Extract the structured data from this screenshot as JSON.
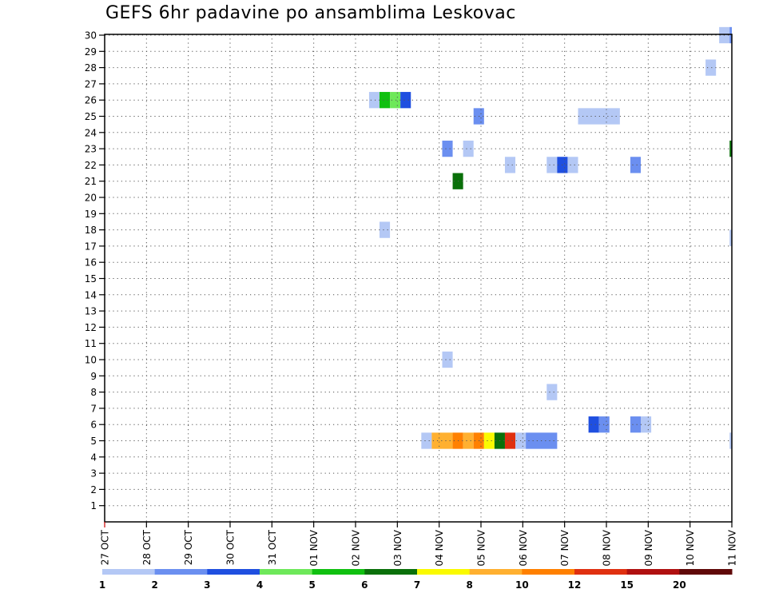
{
  "chart_data": {
    "type": "heatmap",
    "title": "GEFS 6hr padavine po ansamblima Leskovac",
    "xlabel": "",
    "ylabel": "",
    "x_ticks": [
      "27 OCT",
      "28 OCT",
      "29 OCT",
      "30 OCT",
      "31 OCT",
      "01 NOV",
      "02 NOV",
      "03 NOV",
      "04 NOV",
      "05 NOV",
      "06 NOV",
      "07 NOV",
      "08 NOV",
      "09 NOV",
      "10 NOV",
      "11 NOV"
    ],
    "y_ticks": [
      "1",
      "2",
      "3",
      "4",
      "5",
      "6",
      "7",
      "8",
      "9",
      "10",
      "11",
      "12",
      "13",
      "14",
      "15",
      "16",
      "17",
      "18",
      "19",
      "20",
      "21",
      "22",
      "23",
      "24",
      "25",
      "26",
      "27",
      "28",
      "29",
      "30"
    ],
    "ylim": [
      0,
      30
    ],
    "grid": true,
    "colorbar": {
      "bounds": [
        "1",
        "2",
        "3",
        "4",
        "5",
        "6",
        "7",
        "8",
        "10",
        "12",
        "15",
        "20"
      ],
      "colors": [
        "#b4c8f5",
        "#6b8ff0",
        "#1f4fe0",
        "#6ee85a",
        "#10c010",
        "#0a700a",
        "#fafa00",
        "#ffb030",
        "#ff8000",
        "#e03010",
        "#b01010",
        "#600808"
      ]
    },
    "cell_unit": "6-hour steps from 27 OCT 00z",
    "cells": [
      {
        "member": 30,
        "step_start": 58.8,
        "step_end": 59.8,
        "value": 1
      },
      {
        "member": 30,
        "step_start": 59.8,
        "step_end": 60.8,
        "value": 2.5
      },
      {
        "member": 28,
        "step_start": 57.5,
        "step_end": 58.5,
        "value": 1
      },
      {
        "member": 26,
        "step_start": 25.3,
        "step_end": 26.3,
        "value": 1
      },
      {
        "member": 26,
        "step_start": 26.3,
        "step_end": 27.3,
        "value": 5.5
      },
      {
        "member": 26,
        "step_start": 27.3,
        "step_end": 28.3,
        "value": 4.5
      },
      {
        "member": 26,
        "step_start": 28.3,
        "step_end": 29.3,
        "value": 3.5
      },
      {
        "member": 25,
        "step_start": 35.3,
        "step_end": 36.3,
        "value": 2.5
      },
      {
        "member": 25,
        "step_start": 45.3,
        "step_end": 49.3,
        "value": 1
      },
      {
        "member": 23,
        "step_start": 32.3,
        "step_end": 33.3,
        "value": 2.5
      },
      {
        "member": 23,
        "step_start": 34.3,
        "step_end": 35.3,
        "value": 1
      },
      {
        "member": 23,
        "step_start": 59.8,
        "step_end": 60.8,
        "value": 6.5
      },
      {
        "member": 22,
        "step_start": 38.3,
        "step_end": 39.3,
        "value": 1
      },
      {
        "member": 22,
        "step_start": 42.3,
        "step_end": 43.3,
        "value": 1
      },
      {
        "member": 22,
        "step_start": 43.3,
        "step_end": 44.3,
        "value": 3.5
      },
      {
        "member": 22,
        "step_start": 44.3,
        "step_end": 45.3,
        "value": 1
      },
      {
        "member": 22,
        "step_start": 50.3,
        "step_end": 51.3,
        "value": 2.5
      },
      {
        "member": 21,
        "step_start": 33.3,
        "step_end": 34.3,
        "value": 6.5
      },
      {
        "member": 18,
        "step_start": 26.3,
        "step_end": 27.3,
        "value": 1
      },
      {
        "member": 17.5,
        "step_start": 59.8,
        "step_end": 60.8,
        "value": 1
      },
      {
        "member": 10,
        "step_start": 32.3,
        "step_end": 33.3,
        "value": 1
      },
      {
        "member": 8,
        "step_start": 42.3,
        "step_end": 43.3,
        "value": 1
      },
      {
        "member": 6,
        "step_start": 46.3,
        "step_end": 47.3,
        "value": 3.5
      },
      {
        "member": 6,
        "step_start": 47.3,
        "step_end": 48.3,
        "value": 2.5
      },
      {
        "member": 6,
        "step_start": 50.3,
        "step_end": 51.3,
        "value": 2.5
      },
      {
        "member": 6,
        "step_start": 51.3,
        "step_end": 52.3,
        "value": 1
      },
      {
        "member": 5,
        "step_start": 30.3,
        "step_end": 31.3,
        "value": 1
      },
      {
        "member": 5,
        "step_start": 31.3,
        "step_end": 32.3,
        "value": 9
      },
      {
        "member": 5,
        "step_start": 32.3,
        "step_end": 33.3,
        "value": 9
      },
      {
        "member": 5,
        "step_start": 33.3,
        "step_end": 34.3,
        "value": 11
      },
      {
        "member": 5,
        "step_start": 34.3,
        "step_end": 35.3,
        "value": 9
      },
      {
        "member": 5,
        "step_start": 35.3,
        "step_end": 36.3,
        "value": 11
      },
      {
        "member": 5,
        "step_start": 36.3,
        "step_end": 37.3,
        "value": 7.5
      },
      {
        "member": 5,
        "step_start": 37.3,
        "step_end": 38.3,
        "value": 6.5
      },
      {
        "member": 5,
        "step_start": 38.3,
        "step_end": 39.3,
        "value": 13
      },
      {
        "member": 5,
        "step_start": 39.3,
        "step_end": 40.3,
        "value": 1
      },
      {
        "member": 5,
        "step_start": 40.3,
        "step_end": 43.3,
        "value": 2.5
      },
      {
        "member": 5,
        "step_start": 59.8,
        "step_end": 60.8,
        "value": 1
      }
    ]
  }
}
